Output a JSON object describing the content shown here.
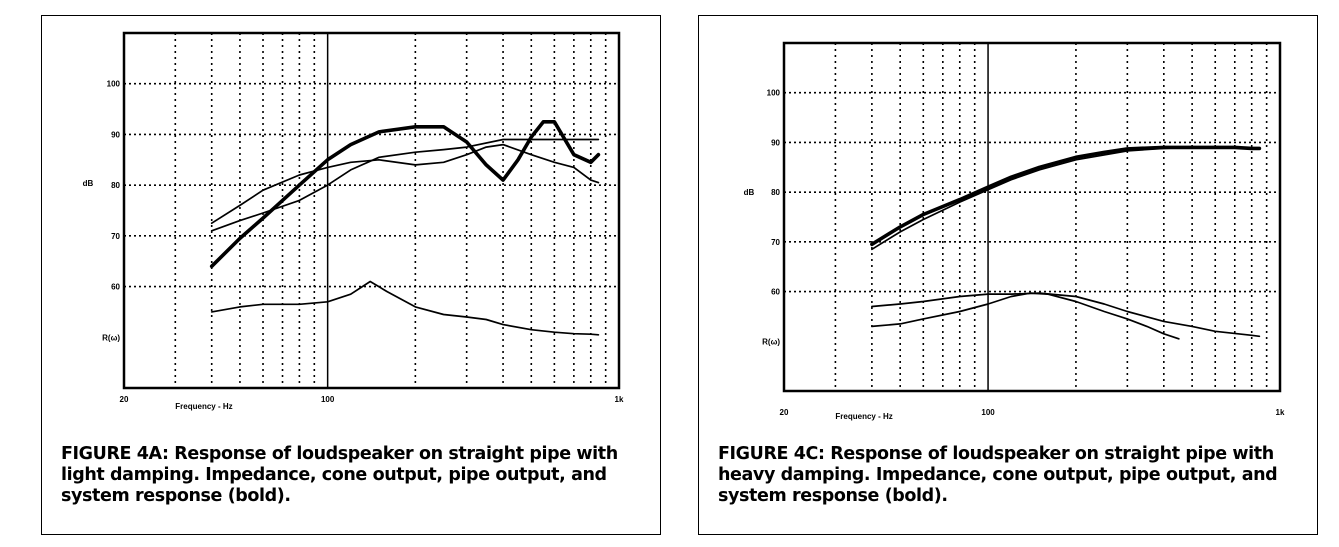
{
  "charts": [
    {
      "caption": "FIGURE 4A: Response of loudspeaker on straight pipe with light damping. Impedance, cone output, pipe output, and system response (bold).",
      "chart_data": {
        "type": "line",
        "xscale": "log",
        "xlim": [
          20,
          1000
        ],
        "ylim": [
          40,
          110
        ],
        "ylabel": "dB",
        "xlabel": "Frequency - Hz",
        "y_ticks": [
          {
            "v": 100,
            "label": "100"
          },
          {
            "v": 90,
            "label": "90"
          },
          {
            "v": 80,
            "label": "80"
          },
          {
            "v": 70,
            "label": "70"
          },
          {
            "v": 60,
            "label": "60"
          },
          {
            "v": 50,
            "label": "R(ω)"
          }
        ],
        "x_ticks": [
          {
            "v": 20,
            "label": "20"
          },
          {
            "v": 100,
            "label": "100"
          },
          {
            "v": 1000,
            "label": "1k"
          }
        ],
        "grid": true,
        "series": [
          {
            "style": "bold",
            "x": [
              40,
              50,
              60,
              70,
              80,
              100,
              120,
              150,
              200,
              250,
              300,
              350,
              400,
              450,
              500,
              550,
              600,
              700,
              800,
              850
            ],
            "y": [
              64,
              69.5,
              73.5,
              77,
              80,
              85,
              88,
              90.5,
              91.5,
              91.5,
              88.5,
              84,
              81,
              85,
              89.5,
              92.5,
              92.5,
              86,
              84.5,
              86
            ]
          },
          {
            "style": "thin",
            "x": [
              40,
              50,
              60,
              80,
              100,
              120,
              150,
              200,
              250,
              300,
              400,
              500,
              600,
              700,
              800,
              850
            ],
            "y": [
              71,
              73,
              74.5,
              77,
              80,
              83,
              85.5,
              86.5,
              87,
              87.5,
              89,
              89,
              89,
              89,
              89,
              89
            ]
          },
          {
            "style": "thin",
            "x": [
              40,
              50,
              60,
              80,
              100,
              120,
              150,
              200,
              250,
              300,
              350,
              400,
              500,
              600,
              700,
              800,
              850
            ],
            "y": [
              72.5,
              76,
              79,
              82,
              83.5,
              84.5,
              85,
              84,
              84.5,
              86,
              87.5,
              88,
              86,
              84.5,
              83.5,
              81,
              80.5
            ]
          },
          {
            "style": "thin",
            "x": [
              40,
              50,
              60,
              70,
              80,
              100,
              120,
              140,
              160,
              200,
              250,
              300,
              350,
              400,
              500,
              600,
              700,
              800,
              850
            ],
            "y": [
              55,
              56,
              56.5,
              56.5,
              56.5,
              57,
              58.5,
              61,
              59,
              56,
              54.5,
              54,
              53.5,
              52.5,
              51.5,
              51,
              50.7,
              50.6,
              50.5
            ]
          }
        ]
      }
    },
    {
      "caption": "FIGURE 4C: Response of loudspeaker on straight pipe with heavy damping. Impedance, cone output, pipe output, and system response (bold).",
      "chart_data": {
        "type": "line",
        "xscale": "log",
        "xlim": [
          20,
          1000
        ],
        "ylim": [
          40,
          110
        ],
        "ylabel": "dB",
        "xlabel": "Frequency - Hz",
        "y_ticks": [
          {
            "v": 100,
            "label": "100"
          },
          {
            "v": 90,
            "label": "90"
          },
          {
            "v": 80,
            "label": "80"
          },
          {
            "v": 70,
            "label": "70"
          },
          {
            "v": 60,
            "label": "60"
          },
          {
            "v": 50,
            "label": "R(ω)"
          }
        ],
        "x_ticks": [
          {
            "v": 20,
            "label": "20"
          },
          {
            "v": 100,
            "label": "100"
          },
          {
            "v": 1000,
            "label": "1k"
          }
        ],
        "grid": true,
        "series": [
          {
            "style": "bold",
            "x": [
              40,
              50,
              60,
              80,
              100,
              120,
              150,
              200,
              250,
              300,
              400,
              500,
              600,
              700,
              800,
              850
            ],
            "y": [
              69.5,
              73,
              75.5,
              78.5,
              81,
              83,
              85,
              87,
              88,
              88.7,
              89,
              89,
              89,
              89,
              88.8,
              88.8
            ]
          },
          {
            "style": "thin",
            "x": [
              40,
              50,
              60,
              80,
              100,
              120,
              150,
              200,
              250,
              300,
              400,
              500,
              600,
              700,
              800,
              850
            ],
            "y": [
              68.5,
              72,
              74.5,
              78,
              80.5,
              82.5,
              84.5,
              86.5,
              87.5,
              88.3,
              88.8,
              89,
              89,
              89,
              88.8,
              88.8
            ]
          },
          {
            "style": "thin",
            "x": [
              40,
              50,
              60,
              80,
              100,
              120,
              150,
              200,
              250,
              300,
              400,
              500,
              600,
              800,
              850
            ],
            "y": [
              57,
              57.5,
              58,
              59,
              59.5,
              59.5,
              59.7,
              59,
              57.5,
              56,
              54,
              53,
              52,
              51.2,
              51
            ]
          },
          {
            "style": "thin",
            "x": [
              40,
              50,
              60,
              80,
              100,
              120,
              140,
              160,
              200,
              250,
              300,
              350,
              400,
              450
            ],
            "y": [
              53,
              53.5,
              54.5,
              56,
              57.5,
              59,
              59.7,
              59.5,
              58,
              56,
              54.5,
              53,
              51.5,
              50.5
            ]
          }
        ]
      }
    }
  ]
}
